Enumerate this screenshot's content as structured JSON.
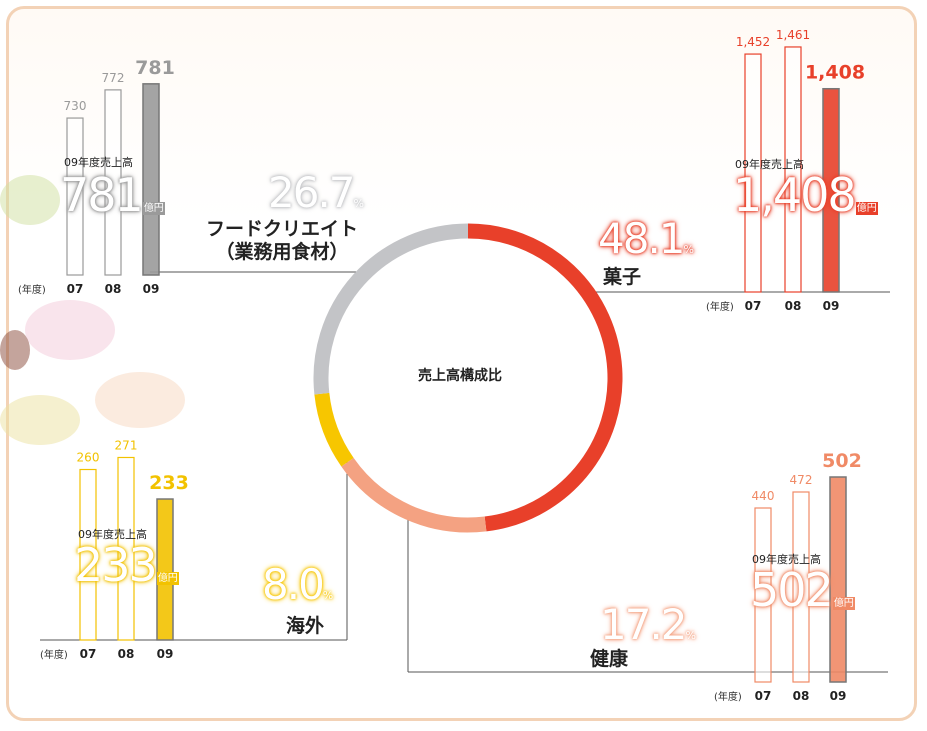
{
  "chart_data": [
    {
      "type": "pie",
      "donut": true,
      "center_label": "売上高構成比",
      "categories": [
        "菓子",
        "健康",
        "海外",
        "フードクリエイト\n（業務用食材）"
      ],
      "values": [
        48.1,
        17.2,
        8.0,
        26.7
      ],
      "value_labels": [
        "48.1",
        "17.2",
        "8.0",
        "26.7"
      ],
      "unit": "%",
      "colors": [
        "#e8402a",
        "#f4a282",
        "#f7c600",
        "#c3c4c7"
      ]
    },
    {
      "type": "bar",
      "title": "09年度売上高",
      "unit": "億円",
      "x_label": "(年度)",
      "categories": [
        "07",
        "08",
        "09"
      ],
      "values": [
        730,
        772,
        781
      ],
      "color": "#9a9a9a",
      "ylim": [
        496,
        824
      ]
    },
    {
      "type": "bar",
      "title": "09年度売上高",
      "unit": "億円",
      "x_label": "(年度)",
      "categories": [
        "07",
        "08",
        "09"
      ],
      "values": [
        1452,
        1461,
        1408
      ],
      "value_labels": [
        "1,452",
        "1,461",
        "1,408"
      ],
      "color": "#e8402a",
      "ylim": [
        1150,
        1480
      ]
    },
    {
      "type": "bar",
      "title": "09年度売上高",
      "unit": "億円",
      "x_label": "(年度)",
      "categories": [
        "07",
        "08",
        "09"
      ],
      "values": [
        260,
        271,
        233
      ],
      "color": "#f2c200",
      "ylim": [
        104,
        287
      ]
    },
    {
      "type": "bar",
      "title": "09年度売上高",
      "unit": "億円",
      "x_label": "(年度)",
      "categories": [
        "07",
        "08",
        "09"
      ],
      "values": [
        440,
        472,
        502
      ],
      "color": "#f08a66",
      "ylim": [
        92,
        532
      ]
    }
  ]
}
